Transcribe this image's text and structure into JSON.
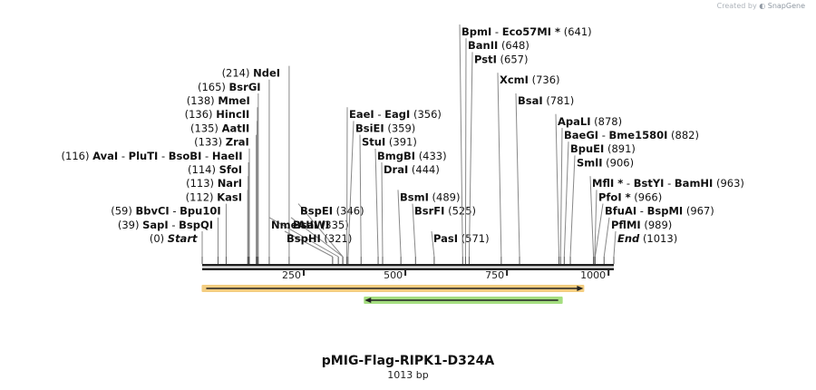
{
  "header": {
    "created_by": "Created by",
    "brand": "SnapGene"
  },
  "title": "pMIG-Flag-RIPK1-D324A",
  "subtitle": "1013 bp",
  "sequence_length": 1013,
  "ruler": {
    "ticks": [
      {
        "pos": 250,
        "label": "250"
      },
      {
        "pos": 500,
        "label": "500"
      },
      {
        "pos": 750,
        "label": "750"
      },
      {
        "pos": 1000,
        "label": "1000"
      }
    ]
  },
  "features": [
    {
      "name": "orange-feature",
      "start": 1,
      "end": 938,
      "direction": "forward",
      "color": "#f0c060"
    },
    {
      "name": "green-feature",
      "start": 400,
      "end": 885,
      "direction": "reverse",
      "color": "#8fd660"
    }
  ],
  "sites": [
    {
      "label_pos": "(214)",
      "label_names": [
        "NdeI"
      ],
      "italic": false,
      "pos": 214,
      "side": "left"
    },
    {
      "label_pos": "(165)",
      "label_names": [
        "BsrGI"
      ],
      "italic": false,
      "pos": 165,
      "side": "left"
    },
    {
      "label_pos": "(138)",
      "label_names": [
        "MmeI"
      ],
      "italic": false,
      "pos": 138,
      "side": "left"
    },
    {
      "label_pos": "(136)",
      "label_names": [
        "HincII"
      ],
      "italic": false,
      "pos": 136,
      "side": "left"
    },
    {
      "label_pos": "(135)",
      "label_names": [
        "AatII"
      ],
      "italic": false,
      "pos": 135,
      "side": "left"
    },
    {
      "label_pos": "(133)",
      "label_names": [
        "ZraI"
      ],
      "italic": false,
      "pos": 133,
      "side": "left"
    },
    {
      "label_pos": "(116)",
      "label_names": [
        "AvaI",
        "PluTI",
        "BsoBI",
        "HaeII"
      ],
      "italic": false,
      "pos": 116,
      "side": "left"
    },
    {
      "label_pos": "(114)",
      "label_names": [
        "SfoI"
      ],
      "italic": false,
      "pos": 114,
      "side": "left"
    },
    {
      "label_pos": "(113)",
      "label_names": [
        "NarI"
      ],
      "italic": false,
      "pos": 113,
      "side": "left"
    },
    {
      "label_pos": "(112)",
      "label_names": [
        "KasI"
      ],
      "italic": false,
      "pos": 112,
      "side": "left"
    },
    {
      "label_pos": "(59)",
      "label_names": [
        "BbvCI",
        "Bpu10I"
      ],
      "italic": false,
      "pos": 59,
      "side": "left"
    },
    {
      "label_pos": "(39)",
      "label_names": [
        "SapI",
        "BspQI"
      ],
      "italic": false,
      "pos": 39,
      "side": "left"
    },
    {
      "label_pos": "(0)",
      "label_names": [
        "Start"
      ],
      "italic": true,
      "pos": 0,
      "side": "left"
    },
    {
      "label_pos": "(346)",
      "label_names": [
        "BspEI"
      ],
      "italic": false,
      "pos": 346,
      "side": "right"
    },
    {
      "label_pos": "",
      "label_names": [
        "BsaWI"
      ],
      "italic": false,
      "pos": 346,
      "side": "right"
    },
    {
      "label_pos": "(335)",
      "label_names": [
        "NmeAIII"
      ],
      "italic": false,
      "pos": 335,
      "side": "right"
    },
    {
      "label_pos": "(321)",
      "label_names": [
        "BspHI"
      ],
      "italic": false,
      "pos": 321,
      "side": "right"
    },
    {
      "label_pos": "(356)",
      "label_names": [
        "EaeI",
        "EagI"
      ],
      "italic": false,
      "pos": 356,
      "side": "right"
    },
    {
      "label_pos": "(359)",
      "label_names": [
        "BsiEI"
      ],
      "italic": false,
      "pos": 359,
      "side": "right"
    },
    {
      "label_pos": "(391)",
      "label_names": [
        "StuI"
      ],
      "italic": false,
      "pos": 391,
      "side": "right"
    },
    {
      "label_pos": "(433)",
      "label_names": [
        "BmgBI"
      ],
      "italic": false,
      "pos": 433,
      "side": "right"
    },
    {
      "label_pos": "(444)",
      "label_names": [
        "DraI"
      ],
      "italic": false,
      "pos": 444,
      "side": "right"
    },
    {
      "label_pos": "(489)",
      "label_names": [
        "BsmI"
      ],
      "italic": false,
      "pos": 489,
      "side": "right"
    },
    {
      "label_pos": "(525)",
      "label_names": [
        "BsrFI"
      ],
      "italic": false,
      "pos": 525,
      "side": "right"
    },
    {
      "label_pos": "(571)",
      "label_names": [
        "PasI"
      ],
      "italic": false,
      "pos": 571,
      "side": "right"
    },
    {
      "label_pos": "(641)",
      "label_names": [
        "BpmI",
        "Eco57MI *"
      ],
      "italic": false,
      "pos": 641,
      "side": "right"
    },
    {
      "label_pos": "(648)",
      "label_names": [
        "BanII"
      ],
      "italic": false,
      "pos": 648,
      "side": "right"
    },
    {
      "label_pos": "(657)",
      "label_names": [
        "PstI"
      ],
      "italic": false,
      "pos": 657,
      "side": "right"
    },
    {
      "label_pos": "(736)",
      "label_names": [
        "XcmI"
      ],
      "italic": false,
      "pos": 736,
      "side": "right"
    },
    {
      "label_pos": "(781)",
      "label_names": [
        "BsaI"
      ],
      "italic": false,
      "pos": 781,
      "side": "right"
    },
    {
      "label_pos": "(878)",
      "label_names": [
        "ApaLI"
      ],
      "italic": false,
      "pos": 878,
      "side": "right"
    },
    {
      "label_pos": "(882)",
      "label_names": [
        "BaeGI",
        "Bme1580I"
      ],
      "italic": false,
      "pos": 882,
      "side": "right"
    },
    {
      "label_pos": "(891)",
      "label_names": [
        "BpuEI"
      ],
      "italic": false,
      "pos": 891,
      "side": "right"
    },
    {
      "label_pos": "(906)",
      "label_names": [
        "SmlI"
      ],
      "italic": false,
      "pos": 906,
      "side": "right"
    },
    {
      "label_pos": "(963)",
      "label_names": [
        "MflI *",
        "BstYI",
        "BamHI"
      ],
      "italic": false,
      "pos": 963,
      "side": "right"
    },
    {
      "label_pos": "(966)",
      "label_names": [
        "PfoI *"
      ],
      "italic": false,
      "pos": 966,
      "side": "right"
    },
    {
      "label_pos": "(967)",
      "label_names": [
        "BfuAI",
        "BspMI"
      ],
      "italic": false,
      "pos": 967,
      "side": "right"
    },
    {
      "label_pos": "(989)",
      "label_names": [
        "PflMI"
      ],
      "italic": false,
      "pos": 989,
      "side": "right"
    },
    {
      "label_pos": "(1013)",
      "label_names": [
        "End"
      ],
      "italic": true,
      "pos": 1013,
      "side": "right"
    }
  ]
}
